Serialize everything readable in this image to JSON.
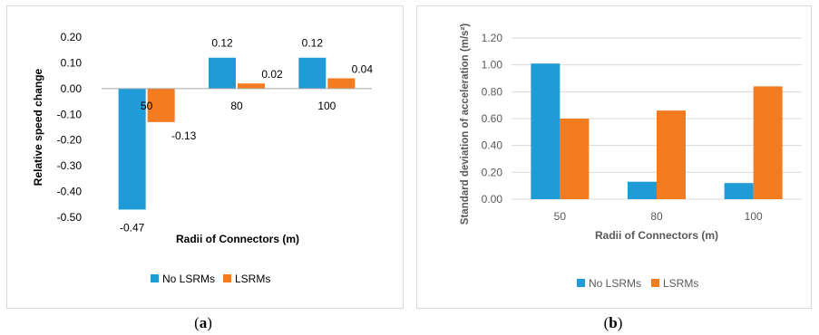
{
  "colors": {
    "no_lsrms": "#1f9bd7",
    "lsrms": "#f47b20",
    "axis": "#a6a6a6",
    "grid": "#d9d9d9"
  },
  "captions": {
    "a_open": "(",
    "a_letter": "a",
    "a_close": ")",
    "b_open": "(",
    "b_letter": "b",
    "b_close": ")"
  },
  "chart_data": [
    {
      "type": "bar",
      "panel": "a",
      "title": "",
      "xlabel": "Radii of Connectors (m)",
      "ylabel": "Relative speed change",
      "categories": [
        "50",
        "80",
        "100"
      ],
      "series": [
        {
          "name": "No LSRMs",
          "values": [
            -0.47,
            0.12,
            0.12
          ]
        },
        {
          "name": "LSRMs",
          "values": [
            -0.13,
            0.02,
            0.04
          ]
        }
      ],
      "data_labels": [
        [
          "-0.47",
          "0.12",
          "0.12"
        ],
        [
          "-0.13",
          "0.02",
          "0.04"
        ]
      ],
      "ylim": [
        -0.5,
        0.2
      ],
      "yticks": [
        "0.20",
        "0.10",
        "0.00",
        "-0.10",
        "-0.20",
        "-0.30",
        "-0.40",
        "-0.50"
      ],
      "grid": false,
      "legend": "bottom"
    },
    {
      "type": "bar",
      "panel": "b",
      "title": "",
      "xlabel": "Radii of Connectors (m)",
      "ylabel": "Standard deviation of acceleration (m/s²)",
      "categories": [
        "50",
        "80",
        "100"
      ],
      "series": [
        {
          "name": "No LSRMs",
          "values": [
            1.01,
            0.13,
            0.12
          ]
        },
        {
          "name": "LSRMs",
          "values": [
            0.6,
            0.66,
            0.84
          ]
        }
      ],
      "ylim": [
        0,
        1.2
      ],
      "yticks": [
        "1.20",
        "1.00",
        "0.80",
        "0.60",
        "0.40",
        "0.20",
        "0.00"
      ],
      "grid": true,
      "legend": "bottom"
    }
  ]
}
